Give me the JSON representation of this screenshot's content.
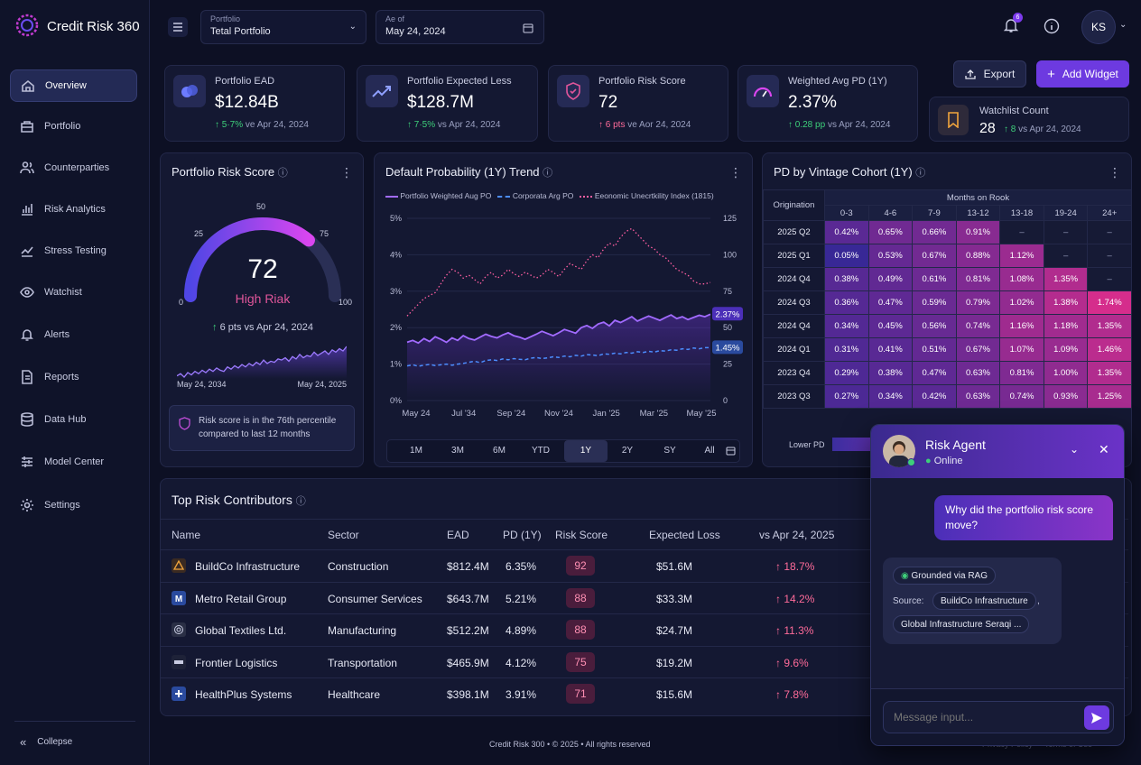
{
  "app": {
    "name": "Credit Risk 360"
  },
  "header": {
    "portfolio_label": "Portfolio",
    "portfolio_value": "Tetal Portfolio",
    "asof_label": "Ae of",
    "asof_value": "May 24, 2024",
    "notif_count": "6",
    "user_initials": "KS"
  },
  "sidebar": {
    "items": [
      {
        "label": "Overview",
        "icon": "home-icon"
      },
      {
        "label": "Portfolio",
        "icon": "briefcase-icon"
      },
      {
        "label": "Counterparties",
        "icon": "users-icon"
      },
      {
        "label": "Risk Analytics",
        "icon": "bar-chart-icon"
      },
      {
        "label": "Stress Testing",
        "icon": "trend-icon"
      },
      {
        "label": "Watchist",
        "icon": "eye-icon"
      },
      {
        "label": "Alerts",
        "icon": "bell-icon"
      },
      {
        "label": "Reports",
        "icon": "file-icon"
      },
      {
        "label": "Data Hub",
        "icon": "database-icon"
      },
      {
        "label": "Model Center",
        "icon": "sliders-icon"
      },
      {
        "label": "Settings",
        "icon": "gear-icon"
      }
    ],
    "collapse": "Collepse"
  },
  "kpis": [
    {
      "title": "Portfolio EAD",
      "value": "$12.84B",
      "delta": "5·7%",
      "suffix": "ve Apr 24, 2024",
      "dir": "up"
    },
    {
      "title": "Portfolio Expected Less",
      "value": "$128.7M",
      "delta": "7·5%",
      "suffix": "vs Apr 24, 2024",
      "dir": "up"
    },
    {
      "title": "Portfolio Risk Score",
      "value": "72",
      "delta": "6 pts",
      "suffix": "ve Aor 24, 2024",
      "dir": "up-bad"
    },
    {
      "title": "Weighted Avg PD (1Y)",
      "value": "2.37%",
      "delta": "0.28 pp",
      "suffix": "vs Apr 24, 2024",
      "dir": "up"
    }
  ],
  "actions": {
    "export": "Export",
    "add_widget": "Add Widget"
  },
  "watchlist": {
    "title": "Watchlist Count",
    "value": "28",
    "delta": "8",
    "suffix": "vs Apr 24, 2024"
  },
  "risk_score": {
    "title": "Portfolio Risk Score",
    "value": "72",
    "label": "High Riak",
    "ticks": [
      "0",
      "25",
      "50",
      "75",
      "100"
    ],
    "gauge_fraction": 0.72,
    "delta": "6 pts vs Apr 24, 2024",
    "spark_start": "May 24, 2034",
    "spark_end": "May 24, 2025",
    "spark": [
      12,
      14,
      11,
      15,
      13,
      16,
      14,
      17,
      15,
      18,
      16,
      19,
      17,
      16,
      20,
      18,
      21,
      19,
      22,
      20,
      23,
      21,
      24,
      22,
      26,
      23,
      25,
      24,
      27,
      26,
      28,
      25,
      29,
      27,
      31,
      28,
      30,
      29,
      33,
      30,
      32,
      34,
      31,
      35,
      33,
      36,
      34,
      38
    ],
    "note": "Risk score is in the 76th percentile compared to last 12 months"
  },
  "chart_data": {
    "type": "line",
    "title": "Default Probability (1Y) Trend",
    "legend": [
      "Portfolio Weighted Aug PO",
      "Corporata Arg PO",
      "Eeonomic Unecrtkility Index (1815)"
    ],
    "x_ticks": [
      "May 24",
      "Jul '34",
      "Sep '24",
      "Nov '24",
      "Jan '25",
      "Mar '25",
      "May '25"
    ],
    "y_left_ticks": [
      "0%",
      "1%",
      "2%",
      "3%",
      "4%",
      "5%"
    ],
    "y_right_ticks": [
      "0",
      "25",
      "50",
      "75",
      "100",
      "125"
    ],
    "ylim_left": [
      0,
      5
    ],
    "ylim_right": [
      0,
      125
    ],
    "series": [
      {
        "name": "Portfolio Weighted Aug PO",
        "axis": "left",
        "end_label": "2.37%",
        "values": [
          1.6,
          1.65,
          1.58,
          1.7,
          1.62,
          1.75,
          1.68,
          1.6,
          1.72,
          1.65,
          1.78,
          1.7,
          1.66,
          1.74,
          1.82,
          1.76,
          1.72,
          1.8,
          1.86,
          1.78,
          1.74,
          1.68,
          1.75,
          1.82,
          1.9,
          1.84,
          1.78,
          1.86,
          1.95,
          1.9,
          1.85,
          2.0,
          2.06,
          1.98,
          2.1,
          2.15,
          2.05,
          2.2,
          2.14,
          2.22,
          2.3,
          2.18,
          2.25,
          2.32,
          2.26,
          2.2,
          2.28,
          2.35,
          2.25,
          2.3,
          2.22,
          2.28,
          2.34,
          2.3,
          2.37
        ]
      },
      {
        "name": "Corporata Arg PO",
        "axis": "left",
        "end_label": "1.45%",
        "values": [
          0.95,
          0.98,
          0.94,
          0.97,
          0.99,
          0.96,
          0.98,
          1.0,
          0.97,
          1.0,
          1.02,
          1.05,
          1.08,
          1.04,
          1.1,
          1.12,
          1.1,
          1.14,
          1.12,
          1.15,
          1.13,
          1.12,
          1.16,
          1.18,
          1.15,
          1.17,
          1.2,
          1.18,
          1.22,
          1.2,
          1.24,
          1.22,
          1.26,
          1.25,
          1.23,
          1.28,
          1.27,
          1.3,
          1.28,
          1.32,
          1.3,
          1.34,
          1.32,
          1.35,
          1.33,
          1.37,
          1.36,
          1.39,
          1.38,
          1.42,
          1.4,
          1.44,
          1.42,
          1.45,
          1.45
        ]
      },
      {
        "name": "Eeonomic Unecrtkility Index (1815)",
        "axis": "right",
        "values": [
          58,
          62,
          66,
          70,
          72,
          74,
          80,
          86,
          90,
          88,
          84,
          86,
          83,
          80,
          85,
          88,
          84,
          86,
          90,
          87,
          85,
          88,
          86,
          84,
          86,
          90,
          88,
          85,
          90,
          94,
          92,
          90,
          96,
          100,
          98,
          104,
          108,
          106,
          112,
          116,
          118,
          114,
          110,
          106,
          104,
          100,
          98,
          94,
          90,
          88,
          86,
          82,
          80,
          80,
          81
        ]
      }
    ],
    "ranges": [
      "1M",
      "3M",
      "6M",
      "YTD",
      "1Y",
      "2Y",
      "SY",
      "All"
    ],
    "active_range": "1Y"
  },
  "vintage": {
    "title": "PD by Vintage Cohort (1Y)",
    "group_header": "Months on Rook",
    "row_header": "Origination",
    "cols": [
      "0-3",
      "4-6",
      "7-9",
      "13-12",
      "13-18",
      "19-24",
      "24+"
    ],
    "rows": [
      {
        "label": "2025 Q2",
        "cells": [
          "0.42%",
          "0.65%",
          "0.66%",
          "0.91%",
          "–",
          "–",
          "–"
        ]
      },
      {
        "label": "2025 Q1",
        "cells": [
          "0.05%",
          "0.53%",
          "0.67%",
          "0.88%",
          "1.12%",
          "–",
          "–"
        ]
      },
      {
        "label": "2024 Q4",
        "cells": [
          "0.38%",
          "0.49%",
          "0.61%",
          "0.81%",
          "1.08%",
          "1.35%",
          "–"
        ]
      },
      {
        "label": "2024 Q3",
        "cells": [
          "0.36%",
          "0.47%",
          "0.59%",
          "0.79%",
          "1.02%",
          "1.38%",
          "1.74%"
        ]
      },
      {
        "label": "2024 Q4",
        "cells": [
          "0.34%",
          "0.45%",
          "0.56%",
          "0.74%",
          "1.16%",
          "1.18%",
          "1.35%"
        ]
      },
      {
        "label": "2024 Q1",
        "cells": [
          "0.31%",
          "0.41%",
          "0.51%",
          "0.67%",
          "1.07%",
          "1.09%",
          "1.46%"
        ]
      },
      {
        "label": "2023 Q4",
        "cells": [
          "0.29%",
          "0.38%",
          "0.47%",
          "0.63%",
          "0.81%",
          "1.00%",
          "1.35%"
        ]
      },
      {
        "label": "2023 Q3",
        "cells": [
          "0.27%",
          "0.34%",
          "0.42%",
          "0.63%",
          "0.74%",
          "0.93%",
          "1.25%"
        ]
      }
    ],
    "legend_low": "Lower PD"
  },
  "contributors": {
    "title": "Top Risk Contributors",
    "headers": [
      "Name",
      "Sector",
      "EAD",
      "PD (1Y)",
      "Risk Score",
      "Expected Loss",
      "vs Apr 24, 2025"
    ],
    "rows": [
      {
        "icon": "warning-icon",
        "name": "BuildCo Infrastructure",
        "sector": "Construction",
        "ead": "$812.4M",
        "pd": "6.35%",
        "score": "92",
        "el": "$51.6M",
        "delta": "18.7%"
      },
      {
        "icon": "m-logo-icon",
        "name": "Metro Retail Group",
        "sector": "Consumer Services",
        "ead": "$643.7M",
        "pd": "5.21%",
        "score": "88",
        "el": "$33.3M",
        "delta": "14.2%"
      },
      {
        "icon": "circle-logo-icon",
        "name": "Global Textiles Ltd.",
        "sector": "Manufacturing",
        "ead": "$512.2M",
        "pd": "4.89%",
        "score": "88",
        "el": "$24.7M",
        "delta": "11.3%"
      },
      {
        "icon": "truck-logo-icon",
        "name": "Frontier Logistics",
        "sector": "Transportation",
        "ead": "$465.9M",
        "pd": "4.12%",
        "score": "75",
        "el": "$19.2M",
        "delta": "9.6%"
      },
      {
        "icon": "cross-logo-icon",
        "name": "HealthPlus Systems",
        "sector": "Healthcare",
        "ead": "$398.1M",
        "pd": "3.91%",
        "score": "71",
        "el": "$15.6M",
        "delta": "7.8%"
      }
    ]
  },
  "agent": {
    "name": "Risk Agent",
    "status": "Online",
    "user_message": "Why did the portfolio risk score move?",
    "grounded": "Grounded via RAG",
    "source_label": "Source:",
    "sources": [
      "BuildCo Infrastructure",
      "Global Infrastructure Seraqi ..."
    ],
    "input_placeholder": "Message input..."
  },
  "footer": {
    "text": "Credit Risk 300 • © 2025 • All rights reserved",
    "privacy": "Privacy Policy",
    "terms": "Terms of Use"
  },
  "colors": {
    "accent": "#7c3aed",
    "positive": "#3ecf7a",
    "negative": "#ff6b9a"
  }
}
